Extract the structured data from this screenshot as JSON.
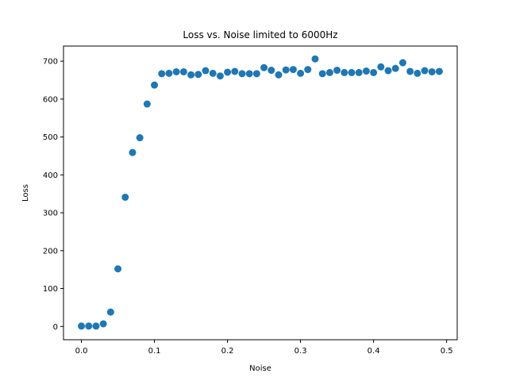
{
  "chart_data": {
    "type": "scatter",
    "title": "Loss vs. Noise limited to 6000Hz",
    "xlabel": "Noise",
    "ylabel": "Loss",
    "xlim": [
      -0.0245,
      0.5145
    ],
    "ylim": [
      -35,
      740
    ],
    "xticks": [
      0.0,
      0.1,
      0.2,
      0.3,
      0.4,
      0.5
    ],
    "xtick_labels": [
      "0.0",
      "0.1",
      "0.2",
      "0.3",
      "0.4",
      "0.5"
    ],
    "yticks": [
      0,
      100,
      200,
      300,
      400,
      500,
      600,
      700
    ],
    "ytick_labels": [
      "0",
      "100",
      "200",
      "300",
      "400",
      "500",
      "600",
      "700"
    ],
    "grid": false,
    "marker_color": "#1f77b4",
    "x": [
      0.0,
      0.01,
      0.02,
      0.03,
      0.04,
      0.05,
      0.06,
      0.07,
      0.08,
      0.09,
      0.1,
      0.11,
      0.12,
      0.13,
      0.14,
      0.15,
      0.16,
      0.17,
      0.18,
      0.19,
      0.2,
      0.21,
      0.22,
      0.23,
      0.24,
      0.25,
      0.26,
      0.27,
      0.28,
      0.29,
      0.3,
      0.31,
      0.32,
      0.33,
      0.34,
      0.35,
      0.36,
      0.37,
      0.38,
      0.39,
      0.4,
      0.41,
      0.42,
      0.43,
      0.44,
      0.45,
      0.46,
      0.47,
      0.48,
      0.49
    ],
    "y": [
      1,
      1,
      1,
      7,
      38,
      152,
      341,
      459,
      498,
      587,
      637,
      667,
      668,
      672,
      672,
      664,
      665,
      675,
      668,
      661,
      671,
      673,
      667,
      667,
      667,
      683,
      676,
      664,
      677,
      678,
      668,
      678,
      706,
      667,
      670,
      676,
      670,
      670,
      670,
      674,
      670,
      685,
      675,
      681,
      696,
      673,
      668,
      675,
      672,
      673
    ]
  }
}
